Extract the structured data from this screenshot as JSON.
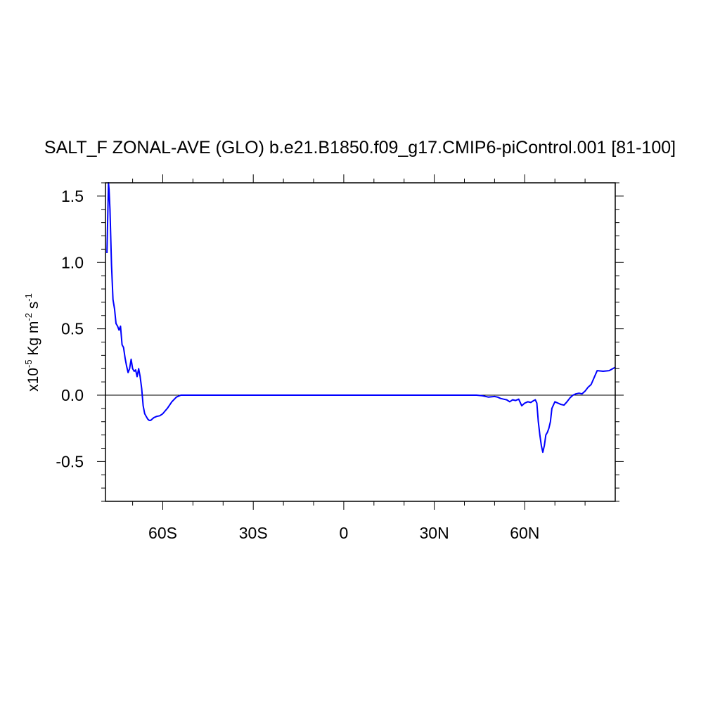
{
  "chart_data": {
    "type": "line",
    "title": "SALT_F ZONAL-AVE (GLO) b.e21.B1850.f09_g17.CMIP6-piControl.001 [81-100]",
    "ylabel": {
      "base": "x10",
      "exp_scale": "-5",
      "unit_a": " Kg m",
      "exp_m": "-2",
      "unit_b": " s",
      "exp_s": "-1"
    },
    "xlim": [
      -79,
      90
    ],
    "ylim": [
      -0.8,
      1.6
    ],
    "x_ticks": [
      {
        "value": -60,
        "label": "60S"
      },
      {
        "value": -30,
        "label": "30S"
      },
      {
        "value": 0,
        "label": "0"
      },
      {
        "value": 30,
        "label": "30N"
      },
      {
        "value": 60,
        "label": "60N"
      }
    ],
    "y_ticks": [
      {
        "value": 1.5,
        "label": "1.5"
      },
      {
        "value": 1.0,
        "label": "1.0"
      },
      {
        "value": 0.5,
        "label": "0.5"
      },
      {
        "value": 0.0,
        "label": "0.0"
      },
      {
        "value": -0.5,
        "label": "-0.5"
      }
    ],
    "reference_line": 0,
    "grid": false,
    "line_color": "#0000ff",
    "series": [
      {
        "x": [
          -78.5,
          -78.0,
          -77.8,
          -77.5,
          -77.0,
          -76.5,
          -76.0,
          -75.5,
          -75.0,
          -74.5,
          -74.0,
          -73.5,
          -73.0,
          -72.5,
          -72.0,
          -71.5,
          -71.0,
          -70.5,
          -70.0,
          -69.5,
          -69.0,
          -68.5,
          -68.0,
          -67.5,
          -67.0,
          -66.5,
          -66.0,
          -65.5,
          -65.0,
          -64.5,
          -64.0,
          -63.0,
          -62.0,
          -61.0,
          -60.0,
          -58.5,
          -57.0,
          -55.5,
          -54.0,
          -53.0,
          -52.0,
          -50.0,
          -40.0,
          -30.0,
          -20.0,
          -10.0,
          0.0,
          10.0,
          20.0,
          30.0,
          40.0,
          44.0,
          46.0,
          48.0,
          50.0,
          51.0,
          52.0,
          53.0,
          54.0,
          55.0,
          56.0,
          57.0,
          58.0,
          59.0,
          60.0,
          61.0,
          62.0,
          63.0,
          63.5,
          64.0,
          64.5,
          65.0,
          65.5,
          66.0,
          66.5,
          67.0,
          67.5,
          68.0,
          68.5,
          69.0,
          70.0,
          71.0,
          72.0,
          73.0,
          74.0,
          75.0,
          76.0,
          77.0,
          78.0,
          79.0,
          80.0,
          81.0,
          82.0,
          84.0,
          86.0,
          88.0,
          90.0
        ],
        "values": [
          1.07,
          1.6,
          1.55,
          1.4,
          0.98,
          0.72,
          0.65,
          0.54,
          0.52,
          0.49,
          0.52,
          0.38,
          0.36,
          0.28,
          0.22,
          0.17,
          0.2,
          0.27,
          0.2,
          0.18,
          0.19,
          0.14,
          0.2,
          0.14,
          0.05,
          -0.08,
          -0.14,
          -0.16,
          -0.18,
          -0.19,
          -0.19,
          -0.17,
          -0.16,
          -0.155,
          -0.14,
          -0.1,
          -0.05,
          -0.015,
          0.0,
          0.0,
          0.0,
          0.0,
          0.0,
          0.0,
          0.0,
          0.0,
          0.0,
          0.0,
          0.0,
          0.0,
          0.0,
          0.0,
          -0.005,
          -0.015,
          -0.01,
          -0.015,
          -0.025,
          -0.03,
          -0.035,
          -0.05,
          -0.035,
          -0.04,
          -0.03,
          -0.08,
          -0.06,
          -0.05,
          -0.055,
          -0.04,
          -0.035,
          -0.06,
          -0.2,
          -0.3,
          -0.38,
          -0.43,
          -0.38,
          -0.3,
          -0.28,
          -0.25,
          -0.2,
          -0.1,
          -0.05,
          -0.06,
          -0.07,
          -0.075,
          -0.05,
          -0.02,
          0.0,
          0.01,
          0.015,
          0.01,
          0.03,
          0.06,
          0.08,
          0.185,
          0.18,
          0.185,
          0.21
        ]
      }
    ]
  }
}
